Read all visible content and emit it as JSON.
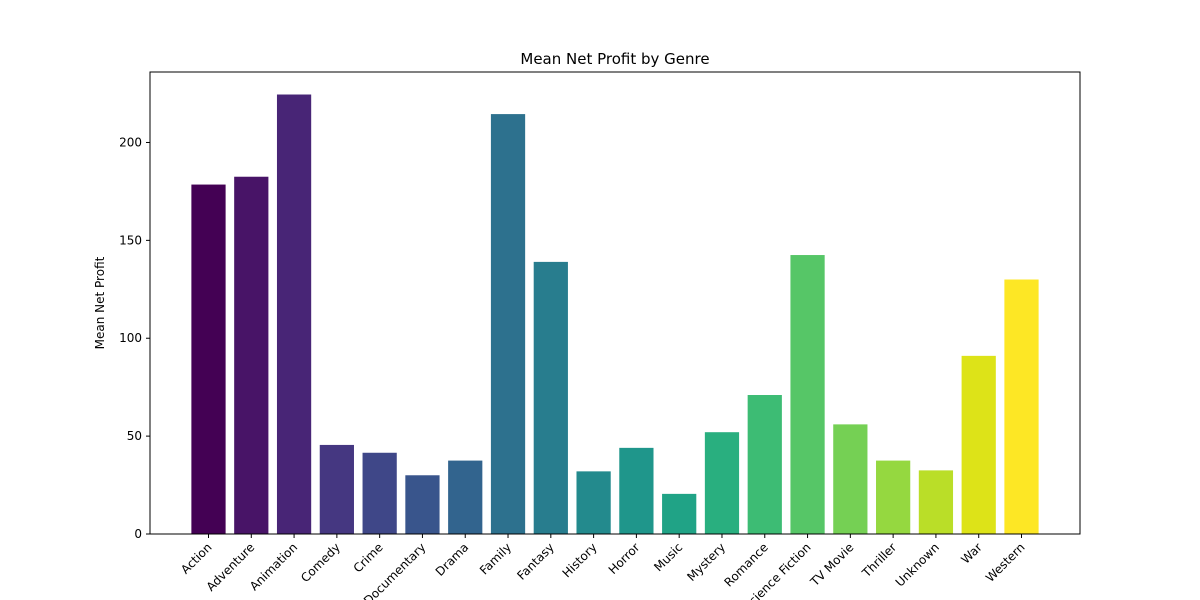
{
  "chart_data": {
    "type": "bar",
    "title": "Mean Net Profit by Genre",
    "xlabel": "",
    "ylabel": "Mean Net Profit",
    "categories": [
      "Action",
      "Adventure",
      "Animation",
      "Comedy",
      "Crime",
      "Documentary",
      "Drama",
      "Family",
      "Fantasy",
      "History",
      "Horror",
      "Music",
      "Mystery",
      "Romance",
      "Science Fiction",
      "TV Movie",
      "Thriller",
      "Unknown",
      "War",
      "Western"
    ],
    "values": [
      178.5,
      182.5,
      224.5,
      45.5,
      41.5,
      30.0,
      37.5,
      214.5,
      139.0,
      32.0,
      44.0,
      20.5,
      52.0,
      71.0,
      142.5,
      56.0,
      37.5,
      32.5,
      91.0,
      130.0
    ],
    "colors": [
      "#440154",
      "#481467",
      "#482576",
      "#453781",
      "#3f4788",
      "#39558c",
      "#32648e",
      "#2d718e",
      "#287d8e",
      "#238a8d",
      "#1f968b",
      "#20a386",
      "#29af7f",
      "#3dbc74",
      "#56c667",
      "#75d054",
      "#95d840",
      "#bade28",
      "#dde318",
      "#fde725"
    ],
    "yticks": [
      0,
      50,
      100,
      150,
      200
    ],
    "ylim": [
      0,
      236
    ],
    "grid": false,
    "legend": "none"
  }
}
